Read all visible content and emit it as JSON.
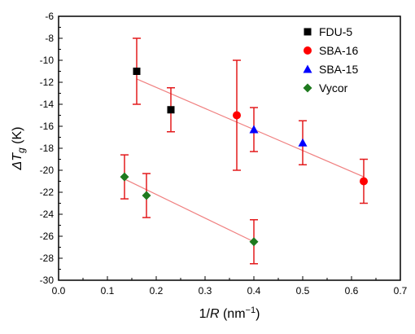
{
  "chart_data": {
    "type": "scatter",
    "xlabel": {
      "prefix": "1/",
      "italic": "R",
      "unit": " (nm",
      "sup": "−1",
      "close": ")"
    },
    "ylabel": {
      "prefix": "Δ",
      "italic": "T",
      "sub": "g",
      "unit": " (K)"
    },
    "xlim": [
      0.0,
      0.7
    ],
    "ylim": [
      -30,
      -6
    ],
    "x_ticks": [
      "0.0",
      "0.1",
      "0.2",
      "0.3",
      "0.4",
      "0.5",
      "0.6",
      "0.7"
    ],
    "y_ticks": [
      "-30",
      "-28",
      "-26",
      "-24",
      "-22",
      "-20",
      "-18",
      "-16",
      "-14",
      "-12",
      "-10",
      "-8",
      "-6"
    ],
    "grid": false,
    "legend_position": "top-right",
    "error_bar_color": "#e31a1c",
    "fit_line_color": "#f08080",
    "series": [
      {
        "name": "FDU-5",
        "marker": "square",
        "color": "#000000",
        "points": [
          {
            "x": 0.16,
            "y": -11.0,
            "err": 3.0
          },
          {
            "x": 0.23,
            "y": -14.5,
            "err": 2.0
          }
        ]
      },
      {
        "name": "SBA-16",
        "marker": "circle",
        "color": "#ff0000",
        "points": [
          {
            "x": 0.365,
            "y": -15.0,
            "err": 5.0
          },
          {
            "x": 0.625,
            "y": -21.0,
            "err": 2.0
          }
        ]
      },
      {
        "name": "SBA-15",
        "marker": "triangle",
        "color": "#0000ff",
        "points": [
          {
            "x": 0.4,
            "y": -16.3,
            "err": 2.0
          },
          {
            "x": 0.5,
            "y": -17.5,
            "err": 2.0
          }
        ]
      },
      {
        "name": "Vycor",
        "marker": "diamond",
        "color": "#1e7a1e",
        "points": [
          {
            "x": 0.135,
            "y": -20.6,
            "err": 2.0
          },
          {
            "x": 0.18,
            "y": -22.3,
            "err": 2.0
          },
          {
            "x": 0.4,
            "y": -26.5,
            "err": 2.0
          }
        ]
      }
    ],
    "fit_lines": [
      {
        "x": [
          0.16,
          0.625
        ],
        "y": [
          -11.7,
          -20.6
        ]
      },
      {
        "x": [
          0.135,
          0.4
        ],
        "y": [
          -20.8,
          -26.5
        ]
      }
    ]
  }
}
